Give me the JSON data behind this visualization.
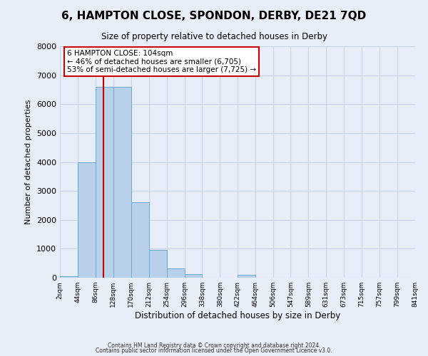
{
  "title": "6, HAMPTON CLOSE, SPONDON, DERBY, DE21 7QD",
  "subtitle": "Size of property relative to detached houses in Derby",
  "xlabel": "Distribution of detached houses by size in Derby",
  "ylabel": "Number of detached properties",
  "bin_edges": [
    2,
    44,
    86,
    128,
    170,
    212,
    254,
    296,
    338,
    380,
    422,
    464,
    506,
    547,
    589,
    631,
    673,
    715,
    757,
    799,
    841
  ],
  "bar_heights": [
    50,
    4000,
    6600,
    6600,
    2600,
    950,
    320,
    120,
    0,
    0,
    100,
    0,
    0,
    0,
    0,
    0,
    0,
    0,
    0,
    0
  ],
  "bar_color": "#b8d0ea",
  "bar_edge_color": "#6aaad4",
  "vline_x": 104,
  "vline_color": "#cc0000",
  "ylim": [
    0,
    8000
  ],
  "yticks": [
    0,
    1000,
    2000,
    3000,
    4000,
    5000,
    6000,
    7000,
    8000
  ],
  "annotation_title": "6 HAMPTON CLOSE: 104sqm",
  "annotation_line1": "← 46% of detached houses are smaller (6,705)",
  "annotation_line2": "53% of semi-detached houses are larger (7,725) →",
  "annotation_box_color": "#ffffff",
  "annotation_box_edge": "#cc0000",
  "grid_color": "#c8d4e8",
  "bg_color": "#e8eef8",
  "footer1": "Contains HM Land Registry data © Crown copyright and database right 2024.",
  "footer2": "Contains public sector information licensed under the Open Government Licence v3.0."
}
